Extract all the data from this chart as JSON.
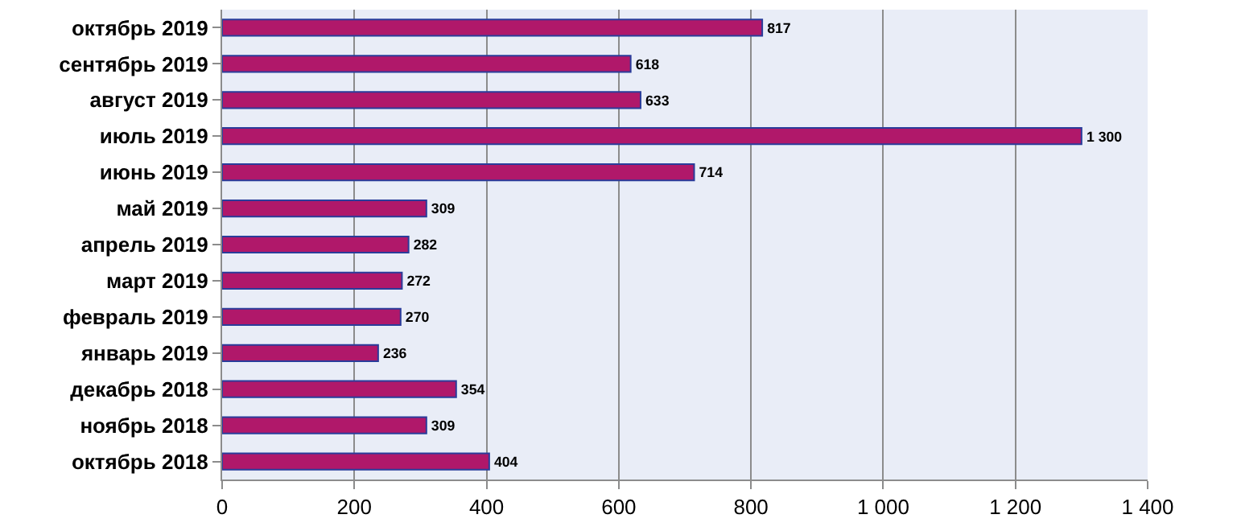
{
  "chart_data": {
    "type": "bar",
    "orientation": "horizontal",
    "categories": [
      "октябрь 2019",
      "сентябрь 2019",
      "август 2019",
      "июль 2019",
      "июнь 2019",
      "май 2019",
      "апрель 2019",
      "март 2019",
      "февраль 2019",
      "январь 2019",
      "декабрь 2018",
      "ноябрь 2018",
      "октябрь 2018"
    ],
    "values": [
      817,
      618,
      633,
      1300,
      714,
      309,
      282,
      272,
      270,
      236,
      354,
      309,
      404
    ],
    "value_labels": [
      "817",
      "618",
      "633",
      "1 300",
      "714",
      "309",
      "282",
      "272",
      "270",
      "236",
      "354",
      "309",
      "404"
    ],
    "color": "#b0186a",
    "xlim": [
      0,
      1400
    ],
    "xticks": [
      0,
      200,
      400,
      600,
      800,
      {
        "value": 1000,
        "label": "1 000"
      },
      {
        "value": 1200,
        "label": "1 200"
      },
      {
        "value": 1400,
        "label": "1 400"
      }
    ],
    "grid": "x",
    "legend": false
  }
}
